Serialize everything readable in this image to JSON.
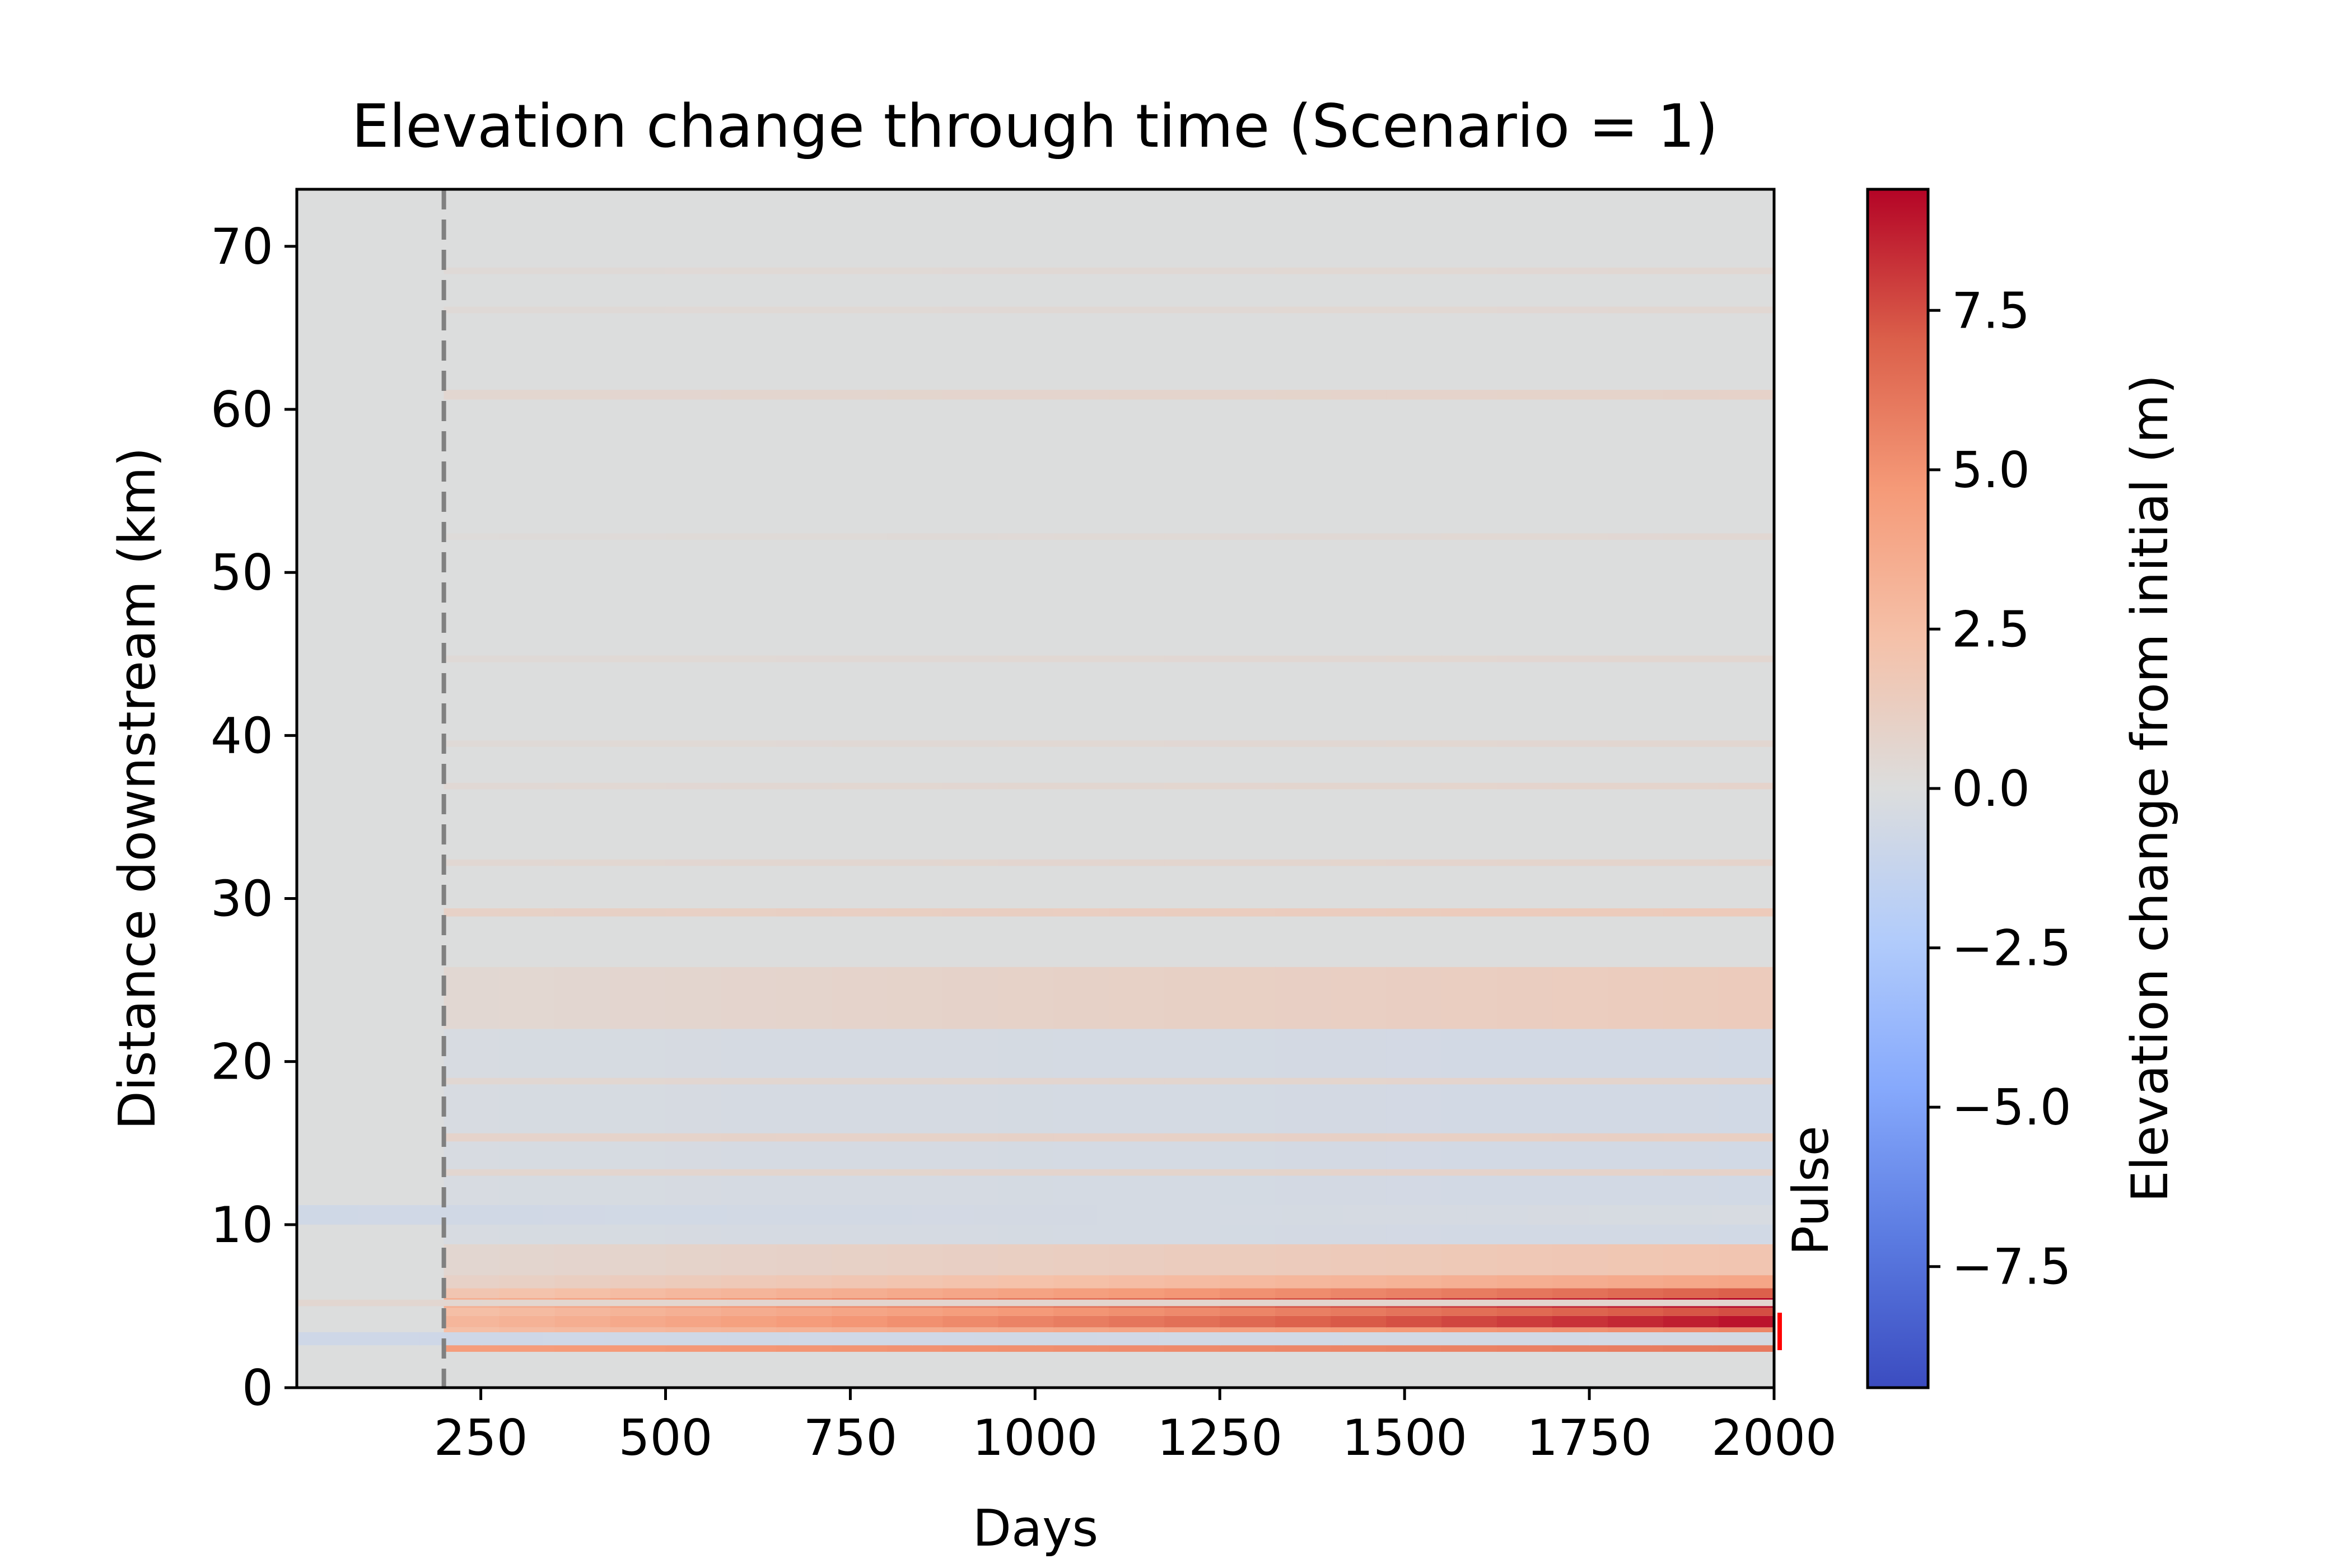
{
  "chart_data": {
    "type": "heatmap",
    "title": "Elevation change through time (Scenario = 1)",
    "xlabel": "Days",
    "ylabel": "Distance downstream (km)",
    "xlim": [
      1,
      2000
    ],
    "ylim": [
      0,
      73.5
    ],
    "x_ticks": [
      250,
      500,
      750,
      1000,
      1250,
      1500,
      1750,
      2000
    ],
    "y_ticks": [
      0,
      10,
      20,
      30,
      40,
      50,
      60,
      70
    ],
    "colorbar": {
      "label": "Elevation change from initial (m)",
      "colormap": "coolwarm",
      "range": [
        -9.4,
        9.4
      ],
      "ticks": [
        -7.5,
        -5.0,
        -2.5,
        0.0,
        2.5,
        5.0,
        7.5
      ],
      "tick_labels": [
        "−7.5",
        "−5.0",
        "−2.5",
        "0.0",
        "2.5",
        "5.0",
        "7.5"
      ],
      "colors": [
        "#3b4cc0",
        "#5b7be1",
        "#86a9fc",
        "#b2ccfb",
        "#dcdddd",
        "#f5c1a9",
        "#f59a78",
        "#db5f4a",
        "#b40426"
      ]
    },
    "pulse_day": 200,
    "pulse_line_color": "#808080",
    "annotation": {
      "text": "Pulse",
      "color": "#ff0000",
      "y_range": [
        2.3,
        4.6
      ]
    },
    "background_value": 0.0,
    "bands": [
      {
        "y0": 2.2,
        "y1": 3.1,
        "start": 200,
        "v0": 4.5,
        "v1": 6.0
      },
      {
        "y0": 3.1,
        "y1": 3.7,
        "start": 200,
        "v0": 2.5,
        "v1": 5.5
      },
      {
        "y0": 3.7,
        "y1": 4.4,
        "start": 200,
        "v0": 3.0,
        "v1": 9.0
      },
      {
        "y0": 4.4,
        "y1": 4.9,
        "start": 200,
        "v0": 2.5,
        "v1": 7.5
      },
      {
        "y0": 4.9,
        "y1": 5.5,
        "start": 200,
        "v0": 3.5,
        "v1": 9.4
      },
      {
        "y0": 5.5,
        "y1": 6.1,
        "start": 200,
        "v0": 2.0,
        "v1": 7.0
      },
      {
        "y0": 6.1,
        "y1": 6.9,
        "start": 200,
        "v0": 1.0,
        "v1": 4.0
      },
      {
        "y0": 6.9,
        "y1": 8.8,
        "start": 200,
        "v0": 0.6,
        "v1": 2.0
      },
      {
        "y0": 8.8,
        "y1": 22.0,
        "start": 200,
        "v0": -0.3,
        "v1": -0.6
      },
      {
        "y0": 15.1,
        "y1": 15.6,
        "start": 200,
        "v0": 0.8,
        "v1": 1.2
      },
      {
        "y0": 13.0,
        "y1": 13.4,
        "start": 200,
        "v0": 0.6,
        "v1": 0.9
      },
      {
        "y0": 18.6,
        "y1": 19.0,
        "start": 200,
        "v0": 0.5,
        "v1": 0.8
      },
      {
        "y0": 22.0,
        "y1": 25.8,
        "start": 200,
        "v0": 0.5,
        "v1": 1.5
      },
      {
        "y0": 28.9,
        "y1": 29.4,
        "start": 200,
        "v0": 1.0,
        "v1": 1.6
      },
      {
        "y0": 32.0,
        "y1": 32.4,
        "start": 200,
        "v0": 0.5,
        "v1": 0.8
      },
      {
        "y0": 36.7,
        "y1": 37.1,
        "start": 200,
        "v0": 0.4,
        "v1": 0.8
      },
      {
        "y0": 39.3,
        "y1": 39.7,
        "start": 200,
        "v0": 0.3,
        "v1": 0.6
      },
      {
        "y0": 44.5,
        "y1": 44.9,
        "start": 200,
        "v0": 0.3,
        "v1": 0.6
      },
      {
        "y0": 52.0,
        "y1": 52.4,
        "start": 200,
        "v0": 0.2,
        "v1": 0.5
      },
      {
        "y0": 60.6,
        "y1": 61.2,
        "start": 200,
        "v0": 0.6,
        "v1": 0.9
      },
      {
        "y0": 65.9,
        "y1": 66.3,
        "start": 200,
        "v0": 0.3,
        "v1": 0.5
      },
      {
        "y0": 68.3,
        "y1": 68.7,
        "start": 200,
        "v0": 0.3,
        "v1": 0.5
      },
      {
        "y0": 10.0,
        "y1": 11.2,
        "start": 1,
        "v0": -0.7,
        "v1": -0.3
      },
      {
        "y0": 2.6,
        "y1": 3.4,
        "start": 1,
        "v0": -0.8,
        "v1": -0.5
      },
      {
        "y0": 5.0,
        "y1": 5.4,
        "start": 1,
        "v0": 0.6,
        "v1": 0.7
      }
    ]
  }
}
